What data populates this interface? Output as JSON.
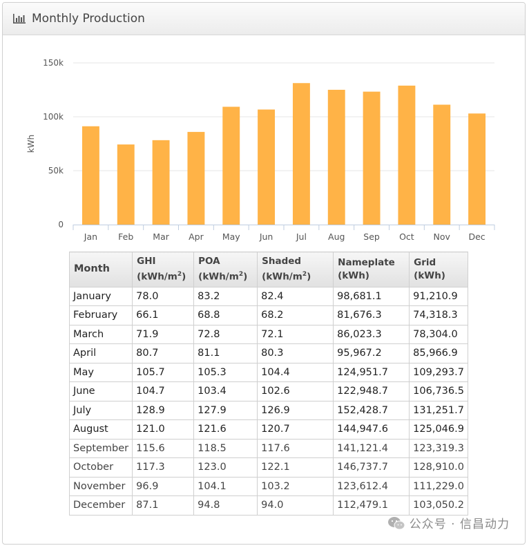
{
  "header": {
    "title": "Monthly Production"
  },
  "chart_data": {
    "type": "bar",
    "title": "",
    "xlabel": "",
    "ylabel": "kWh",
    "ylim": [
      0,
      150000
    ],
    "yticks": [
      0,
      50000,
      100000,
      150000
    ],
    "ytick_labels": [
      "0",
      "50k",
      "100k",
      "150k"
    ],
    "categories": [
      "Jan",
      "Feb",
      "Mar",
      "Apr",
      "May",
      "Jun",
      "Jul",
      "Aug",
      "Sep",
      "Oct",
      "Nov",
      "Dec"
    ],
    "values": [
      91210.9,
      74318.3,
      78304.0,
      85966.9,
      109293.7,
      106736.5,
      131251.7,
      125046.9,
      123319.3,
      128910.0,
      111229.0,
      103050.2
    ],
    "bar_color": "#ffb347"
  },
  "table": {
    "headers": [
      {
        "line1": "Month",
        "line2": "",
        "sup": ""
      },
      {
        "line1": "GHI",
        "line2": "(kWh/m",
        "sup": "2",
        "close": ")"
      },
      {
        "line1": "POA",
        "line2": "(kWh/m",
        "sup": "2",
        "close": ")"
      },
      {
        "line1": "Shaded",
        "line2": "(kWh/m",
        "sup": "2",
        "close": ")"
      },
      {
        "line1": "Nameplate",
        "line2": "(kWh)",
        "sup": "",
        "close": ""
      },
      {
        "line1": "Grid",
        "line2": "(kWh)",
        "sup": "",
        "close": ""
      }
    ],
    "rows": [
      [
        "January",
        "78.0",
        "83.2",
        "82.4",
        "98,681.1",
        "91,210.9"
      ],
      [
        "February",
        "66.1",
        "68.8",
        "68.2",
        "81,676.3",
        "74,318.3"
      ],
      [
        "March",
        "71.9",
        "72.8",
        "72.1",
        "86,023.3",
        "78,304.0"
      ],
      [
        "April",
        "80.7",
        "81.1",
        "80.3",
        "95,967.2",
        "85,966.9"
      ],
      [
        "May",
        "105.7",
        "105.3",
        "104.4",
        "124,951.7",
        "109,293.7"
      ],
      [
        "June",
        "104.7",
        "103.4",
        "102.6",
        "122,948.7",
        "106,736.5"
      ],
      [
        "July",
        "128.9",
        "127.9",
        "126.9",
        "152,428.7",
        "131,251.7"
      ],
      [
        "August",
        "121.0",
        "121.6",
        "120.7",
        "144,947.6",
        "125,046.9"
      ],
      [
        "September",
        "115.6",
        "118.5",
        "117.6",
        "141,121.4",
        "123,319.3"
      ],
      [
        "October",
        "117.3",
        "123.0",
        "122.1",
        "146,737.7",
        "128,910.0"
      ],
      [
        "November",
        "96.9",
        "104.1",
        "103.2",
        "123,612.4",
        "111,229.0"
      ],
      [
        "December",
        "87.1",
        "94.8",
        "94.0",
        "112,479.1",
        "103,050.2"
      ]
    ]
  },
  "watermark": {
    "text": "公众号 · 信昌动力"
  }
}
